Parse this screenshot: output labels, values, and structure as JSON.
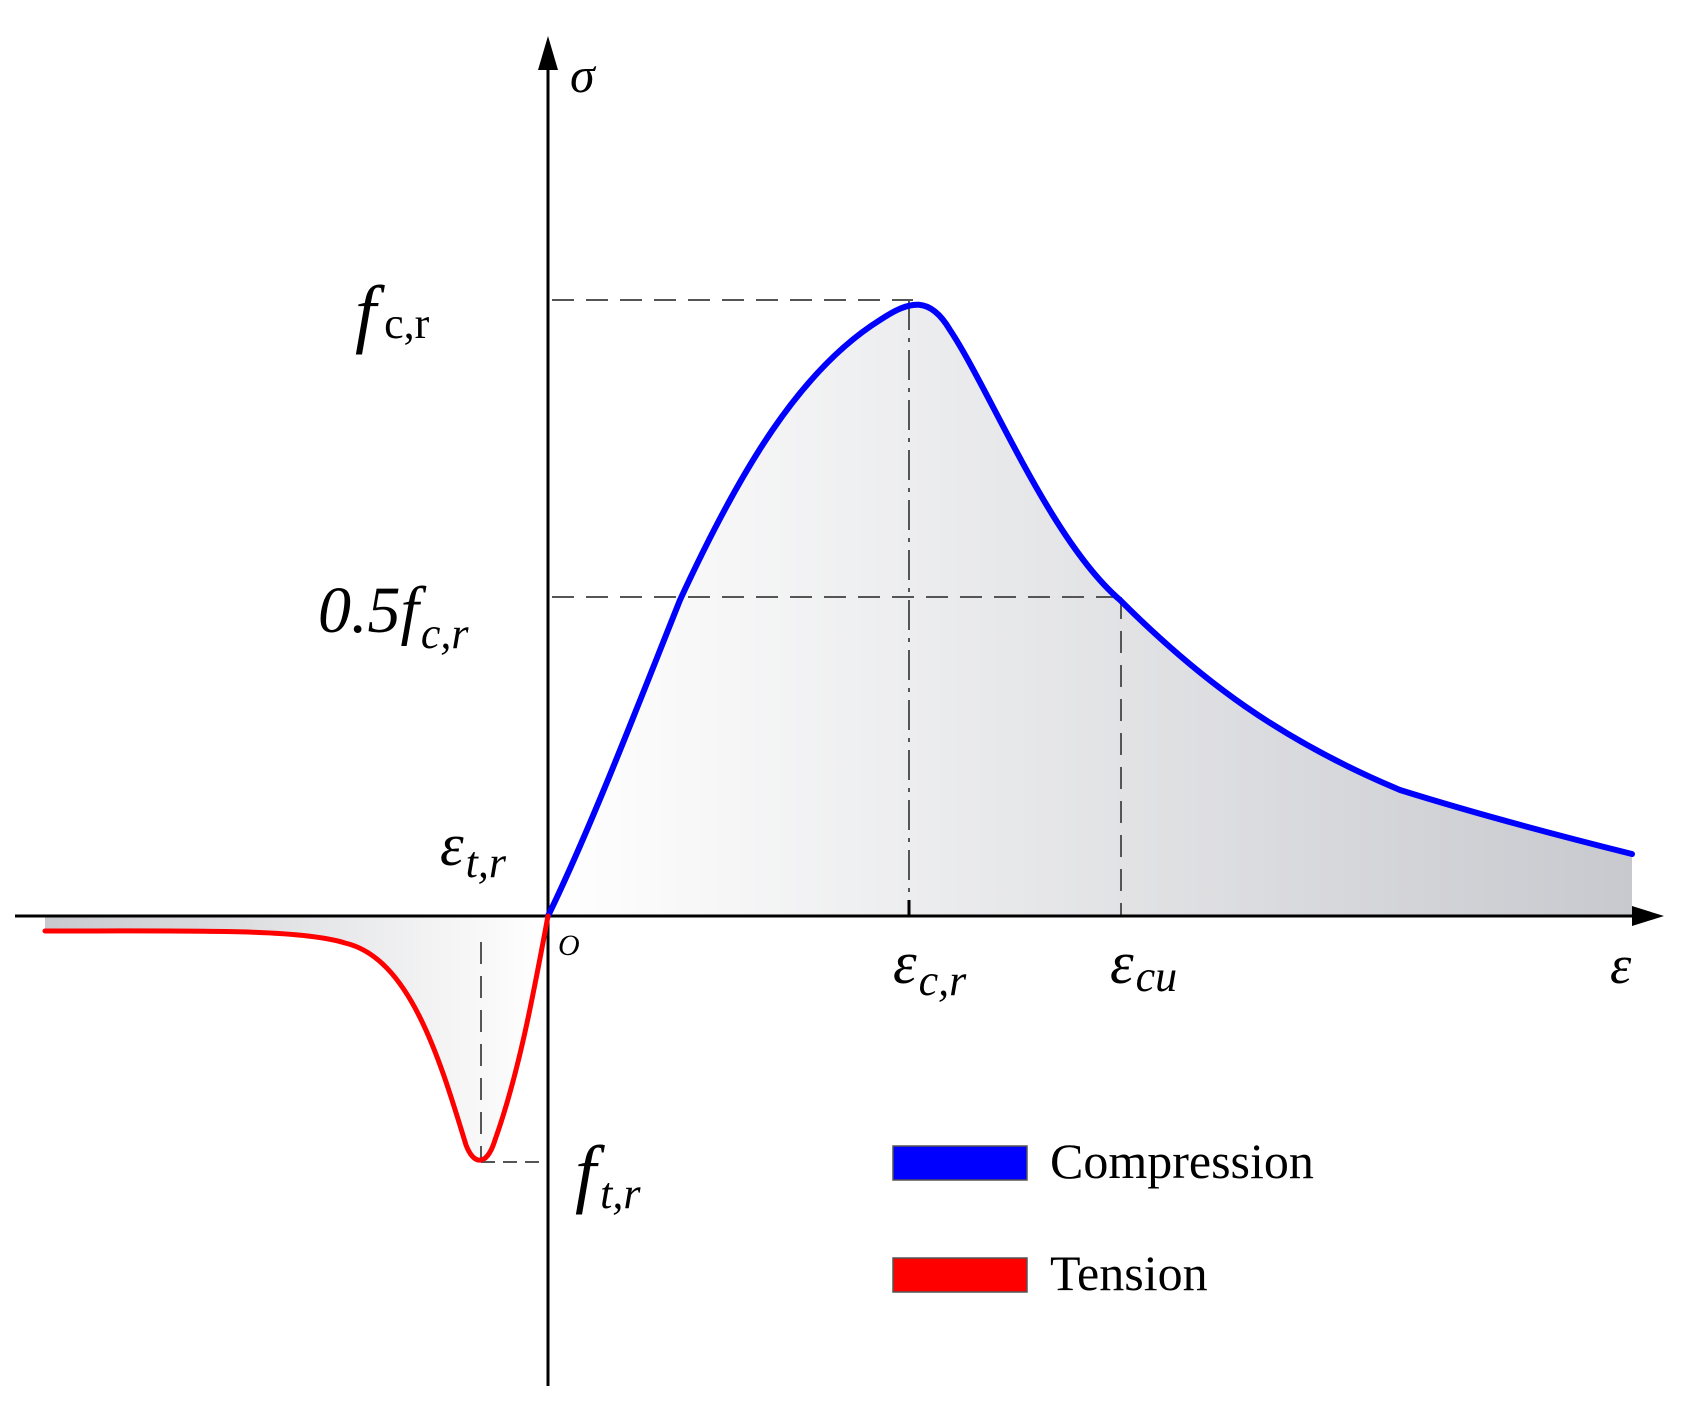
{
  "labels": {
    "sigma": "σ",
    "epsilon": "ε",
    "origin": "O",
    "fcr_main": "f",
    "fcr_sub": "c,r",
    "half_fcr_main": "0.5f",
    "half_fcr_sub": "c,r",
    "etr_main": "ε",
    "etr_sub": "t,r",
    "ftr_main": "f",
    "ftr_sub": "t,r",
    "ecr_main": "ε",
    "ecr_sub": "c,r",
    "ecu_main": "ε",
    "ecu_sub": "cu"
  },
  "legend": {
    "items": [
      {
        "label": "Compression",
        "color": "#0000ff"
      },
      {
        "label": "Tension",
        "color": "#ff0000"
      }
    ]
  },
  "colors": {
    "compression": "#0000ff",
    "tension": "#ff0000",
    "axis": "#000000",
    "guide": "#555555",
    "fill_light": "#ffffff",
    "fill_dark": "#c8c9ce"
  }
}
